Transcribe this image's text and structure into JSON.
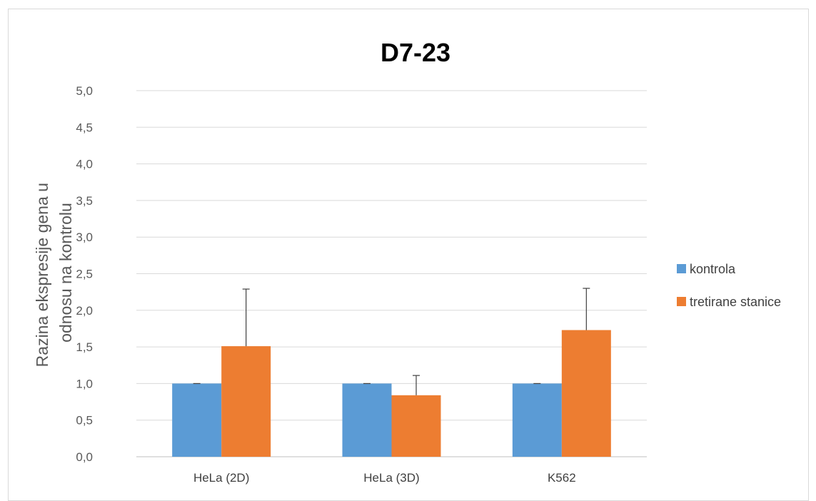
{
  "chart_data": {
    "type": "bar",
    "title": "D7-23",
    "ylabel_lines": [
      "Razina ekspresije gena u",
      "odnosu na kontrolu"
    ],
    "xlabel": "",
    "categories": [
      "HeLa (2D)",
      "HeLa (3D)",
      "K562"
    ],
    "ylim": [
      0,
      5.0
    ],
    "yticks": [
      "0,0",
      "0,5",
      "1,0",
      "1,5",
      "2,0",
      "2,5",
      "3,0",
      "3,5",
      "4,0",
      "4,5",
      "5,0"
    ],
    "grid": true,
    "legend_position": "right",
    "series": [
      {
        "name": "kontrola",
        "color": "#5b9bd5",
        "values": [
          1.0,
          1.0,
          1.0
        ],
        "errors": [
          0.0,
          0.0,
          0.0
        ]
      },
      {
        "name": "tretirane stanice",
        "color": "#ed7d31",
        "values": [
          1.51,
          0.84,
          1.73
        ],
        "errors": [
          0.78,
          0.27,
          0.57
        ]
      }
    ]
  }
}
